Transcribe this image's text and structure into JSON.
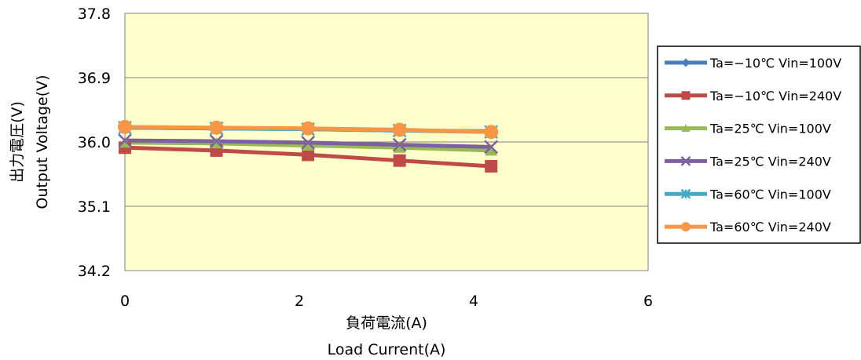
{
  "chart_data": {
    "type": "line",
    "xlabel_ja": "負荷電流(A)",
    "xlabel_en": "Load Current(A)",
    "ylabel_ja": "出力電圧(V)",
    "ylabel_en": "Output  Voltage(V)",
    "xlim": [
      0,
      6
    ],
    "ylim": [
      34.2,
      37.8
    ],
    "xticks": [
      "0",
      "2",
      "4",
      "6"
    ],
    "yticks": [
      "34.2",
      "35.1",
      "36.0",
      "36.9",
      "37.8"
    ],
    "grid": "horizontal",
    "plot_background": "#ffffcc",
    "legend_position": "right",
    "x": [
      0,
      1.05,
      2.1,
      3.15,
      4.2
    ],
    "series": [
      {
        "name": "Ta=−10℃ Vin=100V",
        "color": "#4a7ebb",
        "marker": "diamond",
        "values": [
          36.2,
          36.19,
          36.18,
          36.16,
          36.15
        ]
      },
      {
        "name": "Ta=−10℃ Vin=240V",
        "color": "#be4b48",
        "marker": "square",
        "values": [
          35.92,
          35.88,
          35.82,
          35.74,
          35.66
        ]
      },
      {
        "name": "Ta=25℃ Vin=100V",
        "color": "#98b954",
        "marker": "triangle",
        "values": [
          35.99,
          35.98,
          35.95,
          35.92,
          35.88
        ]
      },
      {
        "name": "Ta=25℃ Vin=240V",
        "color": "#7d60a0",
        "marker": "x",
        "values": [
          36.02,
          36.01,
          35.99,
          35.96,
          35.93
        ]
      },
      {
        "name": "Ta=60℃ Vin=100V",
        "color": "#46aac5",
        "marker": "star",
        "values": [
          36.2,
          36.19,
          36.18,
          36.16,
          36.14
        ]
      },
      {
        "name": "Ta=60℃ Vin=240V",
        "color": "#f79646",
        "marker": "circle",
        "values": [
          36.21,
          36.2,
          36.19,
          36.17,
          36.14
        ]
      }
    ]
  }
}
